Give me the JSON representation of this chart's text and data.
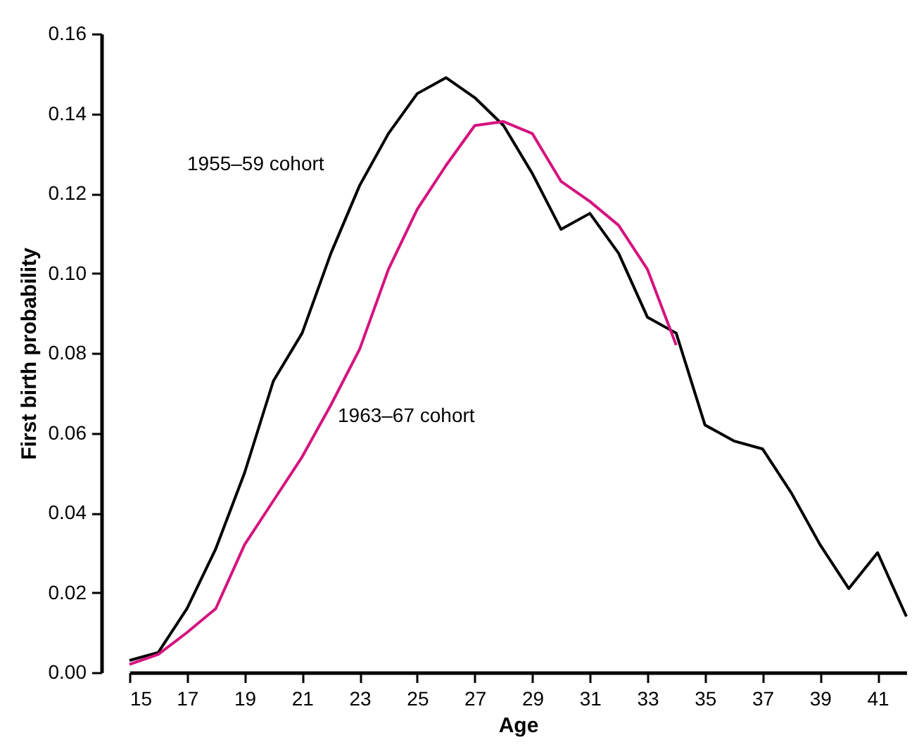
{
  "chart_data": {
    "type": "line",
    "xlabel": "Age",
    "ylabel": "First birth probability",
    "x": [
      15,
      16,
      17,
      18,
      19,
      20,
      21,
      22,
      23,
      24,
      25,
      26,
      27,
      28,
      29,
      30,
      31,
      32,
      33,
      34,
      35,
      36,
      37,
      38,
      39,
      40,
      41,
      42
    ],
    "series": [
      {
        "name": "1955–59 cohort",
        "color": "#000000",
        "values": [
          0.003,
          0.005,
          0.016,
          0.031,
          0.05,
          0.073,
          0.085,
          0.105,
          0.122,
          0.135,
          0.145,
          0.149,
          0.144,
          0.137,
          0.125,
          0.111,
          0.115,
          0.105,
          0.089,
          0.085,
          0.062,
          0.058,
          0.056,
          0.045,
          0.032,
          0.021,
          0.03,
          0.014
        ]
      },
      {
        "name": "1963–67 cohort",
        "color": "#d6127f",
        "values": [
          0.002,
          0.0045,
          0.01,
          0.016,
          0.032,
          0.043,
          0.054,
          0.067,
          0.081,
          0.101,
          0.116,
          0.127,
          0.137,
          0.138,
          0.135,
          0.123,
          0.118,
          0.112,
          0.101,
          0.082,
          null,
          null,
          null,
          null,
          null,
          null,
          null,
          null
        ]
      }
    ],
    "xlim": [
      15,
      42
    ],
    "xticks": [
      15,
      17,
      19,
      21,
      23,
      25,
      27,
      29,
      31,
      33,
      35,
      37,
      39,
      41
    ],
    "ylim": [
      0,
      0.16
    ],
    "yticks": [
      {
        "value": 0,
        "label": "0.00"
      },
      {
        "value": 0.02,
        "label": "0.02"
      },
      {
        "value": 0.04,
        "label": "0.04"
      },
      {
        "value": 0.06,
        "label": "0.06"
      },
      {
        "value": 0.08,
        "label": "0.08"
      },
      {
        "value": 0.1,
        "label": "0.10"
      },
      {
        "value": 0.12,
        "label": "0.12"
      },
      {
        "value": 0.14,
        "label": "0.14"
      },
      {
        "value": 0.16,
        "label": "0.16"
      }
    ],
    "grid": false,
    "legend": false,
    "marker": "none",
    "line_style": "solid"
  }
}
